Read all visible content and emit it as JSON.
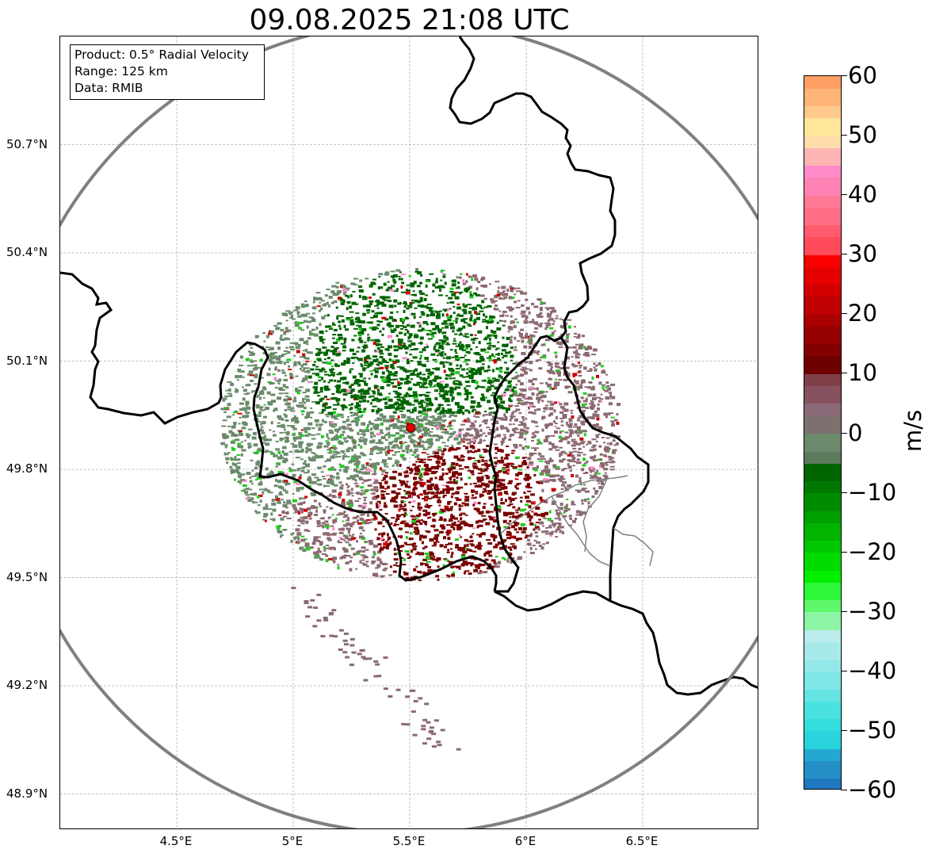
{
  "title": "09.08.2025 21:08 UTC",
  "info_box": {
    "line1": "Product: 0.5° Radial Velocity",
    "line2": "Range: 125 km",
    "line3": "Data: RMIB"
  },
  "map": {
    "lon_range": [
      4.0,
      7.0
    ],
    "lat_range": [
      48.8,
      51.0
    ],
    "radar_site": {
      "lon": 5.505,
      "lat": 49.915
    },
    "range_ring_km": 125,
    "lat_ticks": [
      {
        "value": 50.7,
        "label": "50.7°N"
      },
      {
        "value": 50.4,
        "label": "50.4°N"
      },
      {
        "value": 50.1,
        "label": "50.1°N"
      },
      {
        "value": 49.8,
        "label": "49.8°N"
      },
      {
        "value": 49.5,
        "label": "49.5°N"
      },
      {
        "value": 49.2,
        "label": "49.2°N"
      },
      {
        "value": 48.9,
        "label": "48.9°N"
      }
    ],
    "lon_ticks": [
      {
        "value": 4.5,
        "label": "4.5°E"
      },
      {
        "value": 5.0,
        "label": "5°E"
      },
      {
        "value": 5.5,
        "label": "5.5°E"
      },
      {
        "value": 6.0,
        "label": "6°E"
      },
      {
        "value": 6.5,
        "label": "6.5°E"
      }
    ],
    "colors": {
      "outbound_strong": "#7a0000",
      "outbound_weak": "#8a6a70",
      "near_zero": "#6b8a6b",
      "inbound_strong": "#006400",
      "noise_bright_green": "#22cc22",
      "noise_pink": "#ff88cc",
      "noise_red": "#cc0000",
      "border": "#000000",
      "range_ring": "#808080",
      "radar_marker": "#e00000"
    }
  },
  "colorbar": {
    "unit": "m/s",
    "min": -60,
    "max": 60,
    "ticks": [
      {
        "value": 60,
        "label": "60"
      },
      {
        "value": 50,
        "label": "50"
      },
      {
        "value": 40,
        "label": "40"
      },
      {
        "value": 30,
        "label": "30"
      },
      {
        "value": 20,
        "label": "20"
      },
      {
        "value": 10,
        "label": "10"
      },
      {
        "value": 0,
        "label": "0"
      },
      {
        "value": -10,
        "label": "−10"
      },
      {
        "value": -20,
        "label": "−20"
      },
      {
        "value": -30,
        "label": "−30"
      },
      {
        "value": -40,
        "label": "−40"
      },
      {
        "value": -50,
        "label": "−50"
      },
      {
        "value": -60,
        "label": "−60"
      }
    ],
    "segments": [
      {
        "from": -60,
        "to": -58,
        "color": "#1f78c1"
      },
      {
        "from": -58,
        "to": -55,
        "color": "#2590c8"
      },
      {
        "from": -55,
        "to": -53,
        "color": "#24a8d2"
      },
      {
        "from": -53,
        "to": -50,
        "color": "#2ad4dc"
      },
      {
        "from": -50,
        "to": -48,
        "color": "#33dede"
      },
      {
        "from": -48,
        "to": -45,
        "color": "#4ae2e0"
      },
      {
        "from": -45,
        "to": -43,
        "color": "#66e4e4"
      },
      {
        "from": -43,
        "to": -40,
        "color": "#80e6e6"
      },
      {
        "from": -40,
        "to": -38,
        "color": "#96e8e8"
      },
      {
        "from": -38,
        "to": -35,
        "color": "#a8eaea"
      },
      {
        "from": -35,
        "to": -33,
        "color": "#bcecec"
      },
      {
        "from": -33,
        "to": -30,
        "color": "#8ef5a6"
      },
      {
        "from": -30,
        "to": -28,
        "color": "#5ef86a"
      },
      {
        "from": -28,
        "to": -25,
        "color": "#2ef83a"
      },
      {
        "from": -25,
        "to": -23,
        "color": "#00f000"
      },
      {
        "from": -23,
        "to": -20,
        "color": "#00dc00"
      },
      {
        "from": -20,
        "to": -18,
        "color": "#00c800"
      },
      {
        "from": -18,
        "to": -15,
        "color": "#00b400"
      },
      {
        "from": -15,
        "to": -13,
        "color": "#00a000"
      },
      {
        "from": -13,
        "to": -10,
        "color": "#008c00"
      },
      {
        "from": -10,
        "to": -8,
        "color": "#007800"
      },
      {
        "from": -8,
        "to": -5,
        "color": "#006400"
      },
      {
        "from": -5,
        "to": -3,
        "color": "#5c7a5c"
      },
      {
        "from": -3,
        "to": 0,
        "color": "#6b8a6b"
      },
      {
        "from": 0,
        "to": 3,
        "color": "#7f7070"
      },
      {
        "from": 3,
        "to": 5,
        "color": "#8a6a78"
      },
      {
        "from": 5,
        "to": 8,
        "color": "#865260"
      },
      {
        "from": 8,
        "to": 10,
        "color": "#804048"
      },
      {
        "from": 10,
        "to": 13,
        "color": "#6e0000"
      },
      {
        "from": 13,
        "to": 15,
        "color": "#820000"
      },
      {
        "from": 15,
        "to": 18,
        "color": "#960000"
      },
      {
        "from": 18,
        "to": 20,
        "color": "#aa0000"
      },
      {
        "from": 20,
        "to": 23,
        "color": "#be0000"
      },
      {
        "from": 23,
        "to": 25,
        "color": "#d20000"
      },
      {
        "from": 25,
        "to": 28,
        "color": "#e60000"
      },
      {
        "from": 28,
        "to": 30,
        "color": "#fa0000"
      },
      {
        "from": 30,
        "to": 33,
        "color": "#ff4b5a"
      },
      {
        "from": 33,
        "to": 35,
        "color": "#ff5a6e"
      },
      {
        "from": 35,
        "to": 38,
        "color": "#ff6e84"
      },
      {
        "from": 38,
        "to": 40,
        "color": "#ff7896"
      },
      {
        "from": 40,
        "to": 43,
        "color": "#ff82b4"
      },
      {
        "from": 43,
        "to": 45,
        "color": "#ff8cc8"
      },
      {
        "from": 45,
        "to": 48,
        "color": "#ffb4b4"
      },
      {
        "from": 48,
        "to": 50,
        "color": "#ffdcaa"
      },
      {
        "from": 50,
        "to": 53,
        "color": "#ffe69b"
      },
      {
        "from": 53,
        "to": 55,
        "color": "#ffc88c"
      },
      {
        "from": 55,
        "to": 58,
        "color": "#ffb478"
      },
      {
        "from": 58,
        "to": 60,
        "color": "#ffa064"
      }
    ]
  }
}
